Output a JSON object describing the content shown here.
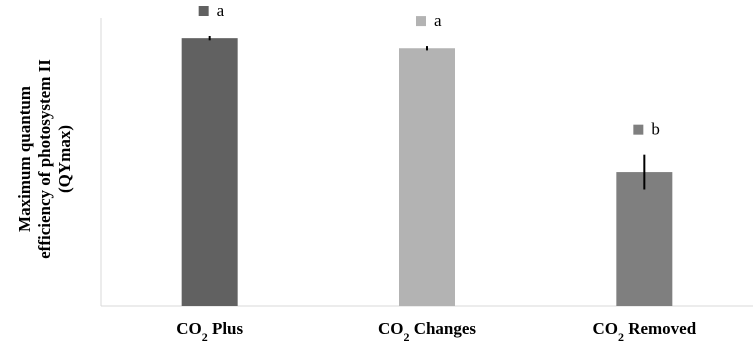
{
  "chart_data": {
    "type": "bar",
    "title": "",
    "xlabel": "",
    "ylabel": "Maximum quantum efficiency of photosystem II (QYmax)",
    "ylabel_lines": [
      "Maximum quantum",
      "efficiency of photosystem II",
      "(QYmax)"
    ],
    "ylim": [
      0,
      1
    ],
    "y_ticks_shown": false,
    "grid": false,
    "legend": "none",
    "categories": [
      {
        "main": "CO",
        "sub": "2",
        "rest": " Plus"
      },
      {
        "main": "CO",
        "sub": "2",
        "rest": " Changes"
      },
      {
        "main": "CO",
        "sub": "2",
        "rest": " Removed"
      }
    ],
    "category_names": [
      "CO2 Plus",
      "CO2 Changes",
      "CO2 Removed"
    ],
    "values": [
      0.93,
      0.895,
      0.465
    ],
    "errors": [
      0.004,
      0.004,
      0.057
    ],
    "significance_letters": [
      "a",
      "a",
      "b"
    ],
    "colors": [
      "#616161",
      "#b3b3b3",
      "#7f7f7f"
    ],
    "axis_color": "#d9d9d9"
  }
}
